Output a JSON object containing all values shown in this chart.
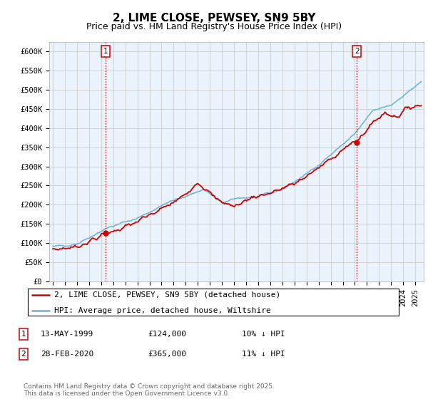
{
  "title": "2, LIME CLOSE, PEWSEY, SN9 5BY",
  "subtitle": "Price paid vs. HM Land Registry's House Price Index (HPI)",
  "ylim": [
    0,
    620000
  ],
  "xlim_start": 1994.7,
  "xlim_end": 2025.7,
  "sale1_date": "13-MAY-1999",
  "sale1_price": 124000,
  "sale1_label": "1",
  "sale1_pct": "10% ↓ HPI",
  "sale2_date": "28-FEB-2020",
  "sale2_price": 365000,
  "sale2_label": "2",
  "sale2_pct": "11% ↓ HPI",
  "sale1_x": 1999.36,
  "sale2_x": 2020.16,
  "hpi_color": "#6baed6",
  "price_color": "#cc0000",
  "vline_color": "#cc0000",
  "grid_color": "#cccccc",
  "bg_color": "#ffffff",
  "chart_bg": "#eaf3fb",
  "legend_label_price": "2, LIME CLOSE, PEWSEY, SN9 5BY (detached house)",
  "legend_label_hpi": "HPI: Average price, detached house, Wiltshire",
  "footer": "Contains HM Land Registry data © Crown copyright and database right 2025.\nThis data is licensed under the Open Government Licence v3.0.",
  "title_fontsize": 11,
  "subtitle_fontsize": 9,
  "tick_fontsize": 7.5,
  "legend_fontsize": 8,
  "footer_fontsize": 6.5
}
